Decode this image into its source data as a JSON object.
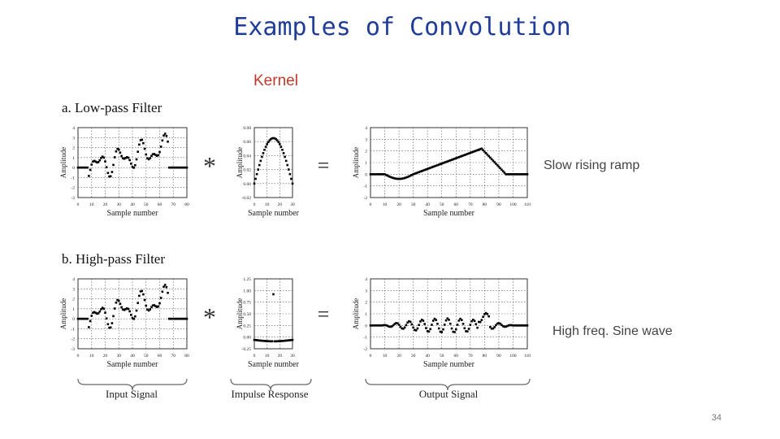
{
  "slide": {
    "title": "Examples of Convolution",
    "kernel_label": "Kernel",
    "row_a_label": "a. Low-pass Filter",
    "row_b_label": "b. High-pass Filter",
    "annotation_a": "Slow rising ramp",
    "annotation_b": "High freq. Sine wave",
    "col_input": "Input Signal",
    "col_kernel": "Impulse Response",
    "col_output": "Output Signal",
    "ylabel": "Amplitude",
    "xlabel": "Sample number",
    "op_convolve": "*",
    "op_equals": "=",
    "page_number": "34"
  },
  "chart_data": [
    {
      "id": "a-input",
      "type": "scatter",
      "xlabel": "Sample number",
      "ylabel": "Amplitude",
      "xlim": [
        0,
        80
      ],
      "ylim": [
        -3,
        4
      ],
      "xticks": [
        "0",
        "10",
        "20",
        "30",
        "40",
        "50",
        "60",
        "70",
        "80"
      ],
      "yticks": [
        "4",
        "3",
        "2",
        "1",
        "0",
        "-1",
        "-2",
        "-3"
      ]
    },
    {
      "id": "a-kernel",
      "type": "scatter",
      "xlabel": "Sample number",
      "ylabel": "Amplitude",
      "xlim": [
        0,
        30
      ],
      "ylim": [
        -0.02,
        0.08
      ],
      "xticks": [
        "0",
        "10",
        "20",
        "30"
      ],
      "yticks": [
        "0.08",
        "0.06",
        "0.04",
        "0.02",
        "0.00",
        "-0.02"
      ]
    },
    {
      "id": "a-output",
      "type": "scatter",
      "xlabel": "Sample number",
      "ylabel": "Amplitude",
      "xlim": [
        0,
        110
      ],
      "ylim": [
        -2,
        4
      ],
      "xticks": [
        "0",
        "10",
        "20",
        "30",
        "40",
        "50",
        "60",
        "70",
        "80",
        "90",
        "100",
        "110"
      ],
      "yticks": [
        "4",
        "3",
        "2",
        "1",
        "0",
        "-1",
        "-2"
      ]
    },
    {
      "id": "b-input",
      "type": "scatter",
      "xlabel": "Sample number",
      "ylabel": "Amplitude",
      "xlim": [
        0,
        80
      ],
      "ylim": [
        -3,
        4
      ],
      "xticks": [
        "0",
        "10",
        "20",
        "30",
        "40",
        "50",
        "60",
        "70",
        "80"
      ],
      "yticks": [
        "4",
        "3",
        "2",
        "1",
        "0",
        "-1",
        "-2",
        "-3"
      ]
    },
    {
      "id": "b-kernel",
      "type": "scatter",
      "xlabel": "Sample number",
      "ylabel": "Amplitude",
      "xlim": [
        0,
        30
      ],
      "ylim": [
        -0.25,
        1.25
      ],
      "xticks": [
        "0",
        "10",
        "20",
        "30"
      ],
      "yticks": [
        "1.25",
        "1.00",
        "0.75",
        "0.50",
        "0.25",
        "0.00",
        "-0.25"
      ]
    },
    {
      "id": "b-output",
      "type": "scatter",
      "xlabel": "Sample number",
      "ylabel": "Amplitude",
      "xlim": [
        0,
        110
      ],
      "ylim": [
        -2,
        4
      ],
      "xticks": [
        "0",
        "10",
        "20",
        "30",
        "40",
        "50",
        "60",
        "70",
        "80",
        "90",
        "100",
        "110"
      ],
      "yticks": [
        "4",
        "3",
        "2",
        "1",
        "0",
        "-1",
        "-2"
      ]
    }
  ]
}
